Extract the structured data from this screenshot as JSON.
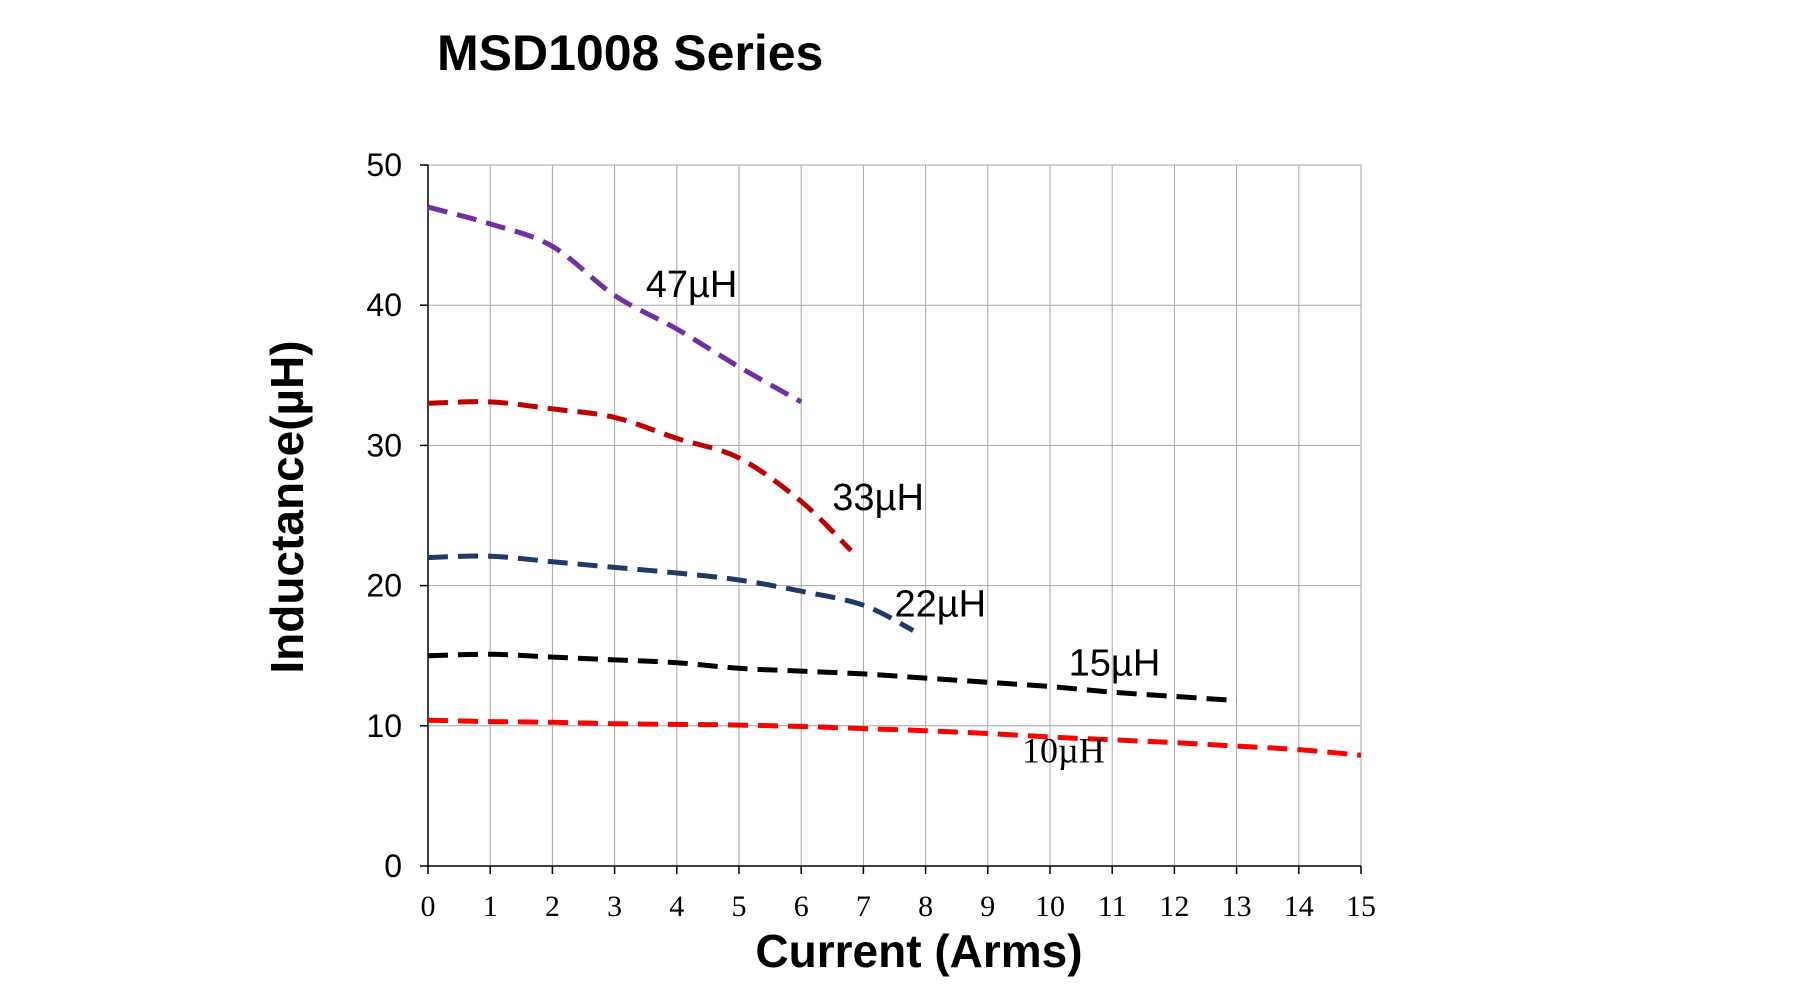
{
  "chart_data": {
    "type": "line",
    "title": "MSD1008 Series",
    "xlabel": "Current (Arms)",
    "ylabel": "Inductance(µH)",
    "xlim": [
      0,
      15
    ],
    "ylim": [
      0,
      50
    ],
    "xticks": [
      "0",
      "1",
      "2",
      "3",
      "4",
      "5",
      "6",
      "7",
      "8",
      "9",
      "10",
      "11",
      "12",
      "13",
      "14",
      "15"
    ],
    "yticks": [
      "0",
      "10",
      "20",
      "30",
      "40",
      "50"
    ],
    "grid": true,
    "series": [
      {
        "name": "47µH",
        "color": "#7030a0",
        "x": [
          0,
          1,
          2,
          3,
          4,
          5,
          6
        ],
        "y": [
          47,
          45.8,
          44.2,
          40.7,
          38.3,
          35.6,
          33.1
        ]
      },
      {
        "name": "33µH",
        "color": "#c00000",
        "x": [
          0,
          1,
          2,
          3,
          4,
          5,
          6,
          6.8
        ],
        "y": [
          33,
          33.1,
          32.6,
          32.0,
          30.5,
          29.1,
          26.0,
          22.5
        ]
      },
      {
        "name": "22µH",
        "color": "#1f3a68",
        "x": [
          0,
          1,
          2,
          3,
          4,
          5,
          6,
          7,
          7.8
        ],
        "y": [
          22,
          22.1,
          21.7,
          21.3,
          20.9,
          20.4,
          19.6,
          18.6,
          16.8
        ]
      },
      {
        "name": "15µH",
        "color": "#000000",
        "x": [
          0,
          1,
          2,
          3,
          4,
          5,
          6,
          7,
          8,
          9,
          10,
          11,
          12,
          13
        ],
        "y": [
          15,
          15.1,
          14.9,
          14.7,
          14.5,
          14.1,
          13.9,
          13.7,
          13.4,
          13.1,
          12.8,
          12.4,
          12.1,
          11.8
        ]
      },
      {
        "name": "10µH",
        "color": "#ff0000",
        "x": [
          0,
          1,
          2,
          3,
          4,
          5,
          6,
          7,
          8,
          9,
          10,
          11,
          12,
          13,
          14,
          15
        ],
        "y": [
          10.4,
          10.3,
          10.25,
          10.15,
          10.1,
          10.05,
          9.95,
          9.8,
          9.65,
          9.45,
          9.2,
          9.0,
          8.8,
          8.55,
          8.3,
          7.9
        ]
      }
    ]
  }
}
